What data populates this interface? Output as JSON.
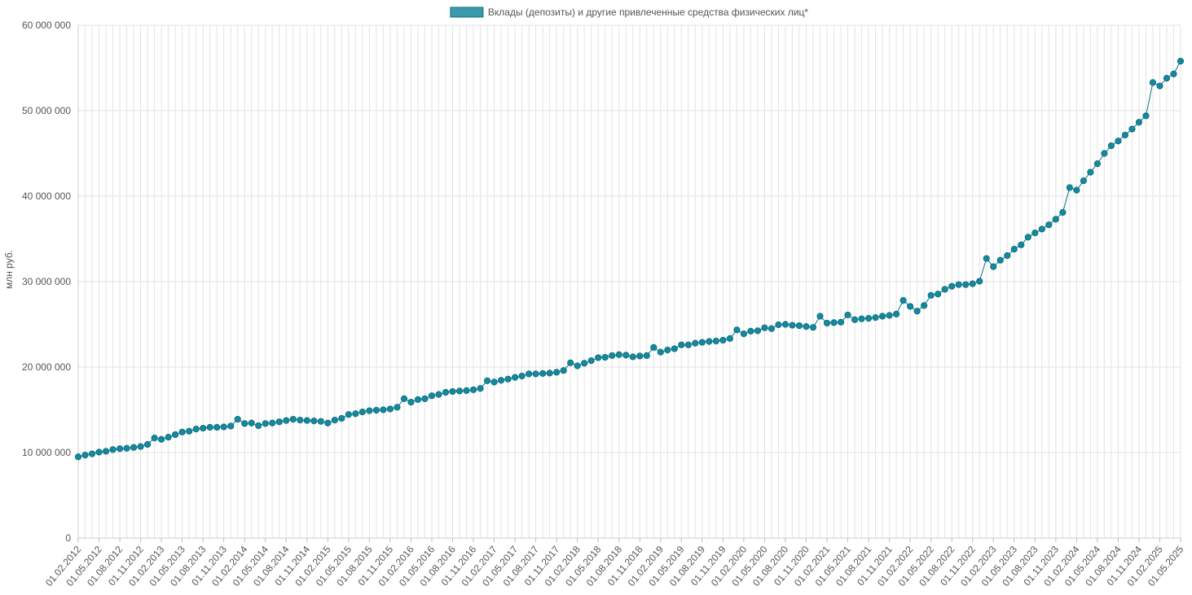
{
  "colors": {
    "series": "#14899e",
    "series_fill": "#3a99ab",
    "line": "#0d7080",
    "grid": "#e3e3e3"
  },
  "chart_data": {
    "type": "line",
    "ylabel": "млн руб.",
    "ylim": [
      0,
      60000000
    ],
    "y_ticks": [
      "0",
      "10 000 000",
      "20 000 000",
      "30 000 000",
      "40 000 000",
      "50 000 000",
      "60 000 000"
    ],
    "y_tick_values": [
      0,
      10000000,
      20000000,
      30000000,
      40000000,
      50000000,
      60000000
    ],
    "x_labels": [
      "01.02.2012",
      "01.05.2012",
      "01.08.2012",
      "01.11.2012",
      "01.02.2013",
      "01.05.2013",
      "01.08.2013",
      "01.11.2013",
      "01.02.2014",
      "01.05.2014",
      "01.08.2014",
      "01.11.2014",
      "01.02.2015",
      "01.05.2015",
      "01.08.2015",
      "01.11.2015",
      "01.02.2016",
      "01.05.2016",
      "01.08.2016",
      "01.11.2016",
      "01.02.2017",
      "01.05.2017",
      "01.08.2017",
      "01.11.2017",
      "01.02.2018",
      "01.05.2018",
      "01.08.2018",
      "01.11.2018",
      "01.02.2019",
      "01.05.2019",
      "01.08.2019",
      "01.11.2019",
      "01.02.2020",
      "01.05.2020",
      "01.08.2020",
      "01.11.2020",
      "01.02.2021",
      "01.05.2021",
      "01.08.2021",
      "01.11.2021",
      "01.02.2022",
      "01.05.2022",
      "01.08.2022",
      "01.11.2022",
      "01.02.2023",
      "01.05.2023",
      "01.08.2023",
      "01.11.2023",
      "01.02.2024",
      "01.05.2024",
      "01.08.2024",
      "01.11.2024",
      "01.02.2025",
      "01.05.2025"
    ],
    "legend_position": "top-center",
    "grid": true,
    "series": [
      {
        "name": "Вклады (депозиты) и другие привлеченные средства физических лиц*",
        "values": [
          9500000,
          9700000,
          9850000,
          10050000,
          10150000,
          10350000,
          10450000,
          10500000,
          10600000,
          10700000,
          10950000,
          11700000,
          11550000,
          11800000,
          12100000,
          12400000,
          12500000,
          12750000,
          12850000,
          12950000,
          12950000,
          13000000,
          13100000,
          13900000,
          13400000,
          13450000,
          13150000,
          13400000,
          13450000,
          13600000,
          13750000,
          13900000,
          13800000,
          13750000,
          13700000,
          13650000,
          13450000,
          13800000,
          14000000,
          14450000,
          14550000,
          14750000,
          14900000,
          14950000,
          15000000,
          15100000,
          15300000,
          16300000,
          15900000,
          16200000,
          16300000,
          16650000,
          16800000,
          17050000,
          17150000,
          17200000,
          17250000,
          17350000,
          17500000,
          18400000,
          18250000,
          18450000,
          18600000,
          18800000,
          18950000,
          19200000,
          19200000,
          19250000,
          19300000,
          19400000,
          19600000,
          20500000,
          20150000,
          20450000,
          20750000,
          21100000,
          21150000,
          21350000,
          21450000,
          21400000,
          21200000,
          21300000,
          21350000,
          22300000,
          21750000,
          22000000,
          22150000,
          22600000,
          22600000,
          22800000,
          22900000,
          23000000,
          23050000,
          23150000,
          23350000,
          24350000,
          23900000,
          24200000,
          24250000,
          24600000,
          24500000,
          24950000,
          25000000,
          24900000,
          24850000,
          24750000,
          24650000,
          25950000,
          25150000,
          25200000,
          25250000,
          26100000,
          25550000,
          25650000,
          25700000,
          25800000,
          25950000,
          26050000,
          26200000,
          27800000,
          27100000,
          26550000,
          27200000,
          28400000,
          28550000,
          29100000,
          29450000,
          29650000,
          29650000,
          29750000,
          30050000,
          32700000,
          31750000,
          32500000,
          33050000,
          33800000,
          34300000,
          35200000,
          35700000,
          36150000,
          36650000,
          37300000,
          38100000,
          41000000,
          40700000,
          41800000,
          42800000,
          43800000,
          45000000,
          45900000,
          46450000,
          47150000,
          47850000,
          48650000,
          49400000,
          53300000,
          52900000,
          53800000,
          54300000,
          55800000
        ]
      }
    ]
  }
}
